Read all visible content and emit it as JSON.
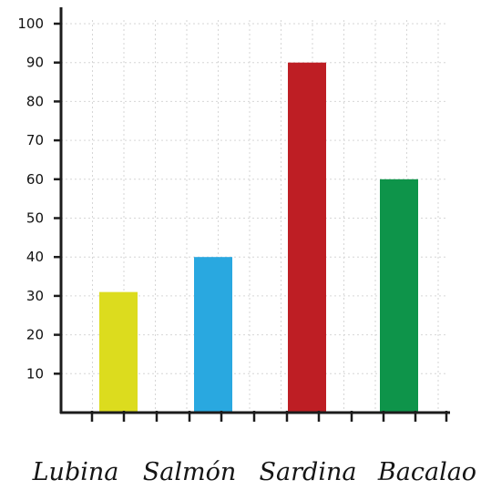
{
  "chart_data": {
    "type": "bar",
    "categories": [
      "Lubina",
      "Salmón",
      "Sardina",
      "Bacalao"
    ],
    "values": [
      31,
      40,
      90,
      60
    ],
    "title": "",
    "xlabel": "",
    "ylabel": "",
    "ylim": [
      0,
      100
    ],
    "yticks": [
      10,
      20,
      30,
      40,
      50,
      60,
      70,
      80,
      90,
      100
    ],
    "grid": true,
    "legend": "none",
    "colors": [
      "#dcdc1e",
      "#29a8e0",
      "#be1e24",
      "#0e944a"
    ],
    "axis_color": "#1c1c1c",
    "grid_color": "#d6d6d6"
  }
}
